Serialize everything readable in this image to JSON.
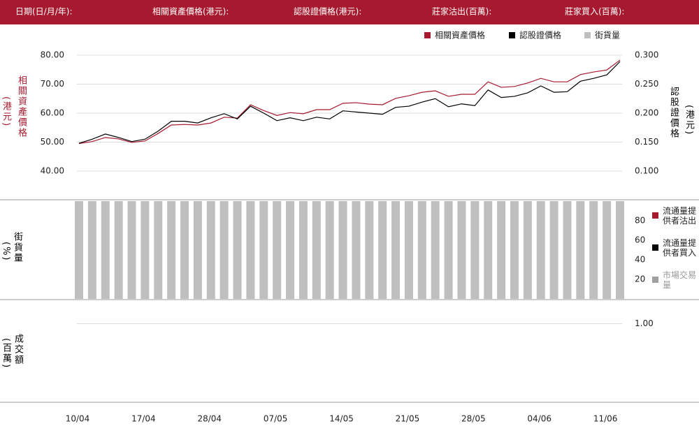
{
  "header": [
    "日期(日/月/年):",
    "相關資產價格(港元):",
    "認股證價格(港元):",
    "莊家沽出(百萬):",
    "莊家買入(百萬):"
  ],
  "chart_data": [
    {
      "type": "line",
      "y_label": "相關資產價格",
      "y_unit": "(港元)",
      "y2_label": "認股證價格",
      "y2_unit": "(港元)",
      "ylim": [
        40,
        80
      ],
      "yticks": [
        {
          "value": 40,
          "label": "40.00"
        },
        {
          "value": 50,
          "label": "50.00"
        },
        {
          "value": 60,
          "label": "60.00"
        },
        {
          "value": 70,
          "label": "70.00"
        },
        {
          "value": 80,
          "label": "80.00"
        }
      ],
      "y2lim": [
        0.1,
        0.3
      ],
      "y2ticks": [
        {
          "value": 0.1,
          "label": "0.100"
        },
        {
          "value": 0.15,
          "label": "0.150"
        },
        {
          "value": 0.2,
          "label": "0.200"
        },
        {
          "value": 0.25,
          "label": "0.250"
        },
        {
          "value": 0.3,
          "label": "0.300"
        }
      ],
      "grid": true,
      "series": [
        {
          "name": "相關資產價格",
          "color": "#a6192e",
          "values": [
            49.5,
            50.2,
            51.6,
            51.1,
            49.9,
            50.4,
            53.0,
            55.9,
            56.1,
            55.9,
            56.6,
            58.6,
            58.3,
            62.9,
            60.9,
            59.2,
            60.2,
            59.8,
            61.2,
            61.2,
            63.4,
            63.6,
            63.1,
            62.9,
            65.1,
            66.0,
            67.2,
            67.7,
            65.8,
            66.5,
            66.5,
            70.8,
            68.9,
            69.2,
            70.4,
            72.0,
            70.8,
            70.8,
            73.3,
            74.2,
            74.9,
            78.3
          ]
        },
        {
          "name": "認股證價格",
          "color": "#000000",
          "axis": "y2",
          "values": [
            0.148,
            0.155,
            0.164,
            0.158,
            0.151,
            0.155,
            0.169,
            0.186,
            0.186,
            0.183,
            0.192,
            0.199,
            0.19,
            0.212,
            0.2,
            0.187,
            0.192,
            0.187,
            0.193,
            0.19,
            0.204,
            0.202,
            0.2,
            0.198,
            0.21,
            0.212,
            0.219,
            0.225,
            0.211,
            0.216,
            0.213,
            0.24,
            0.227,
            0.229,
            0.235,
            0.247,
            0.236,
            0.237,
            0.255,
            0.26,
            0.266,
            0.289
          ]
        }
      ]
    },
    {
      "type": "bar",
      "y_label": "街貨量",
      "y_unit": "(%)",
      "ylim": [
        0,
        100
      ],
      "yticks": [
        20,
        40,
        60,
        80
      ],
      "series": [
        {
          "name": "街貨量",
          "color": "#bfbfbf",
          "values": [
            100,
            100,
            100,
            100,
            100,
            100,
            100,
            100,
            100,
            100,
            100,
            100,
            100,
            100,
            100,
            100,
            100,
            100,
            100,
            100,
            100,
            100,
            100,
            100,
            100,
            100,
            100,
            100,
            100,
            100,
            100,
            100,
            100,
            100,
            100,
            100,
            100,
            100,
            100,
            100,
            100,
            100
          ]
        }
      ]
    },
    {
      "type": "bar",
      "y_label": "成交額",
      "y_unit": "(百萬)",
      "ylim": [
        0,
        1.3
      ],
      "yticks": [
        {
          "value": 1,
          "label": "1.00"
        }
      ],
      "grid": true,
      "categories": [
        "10/04",
        null,
        null,
        null,
        null,
        "17/04",
        null,
        null,
        null,
        null,
        "28/04",
        null,
        null,
        null,
        null,
        "07/05",
        null,
        null,
        null,
        null,
        "14/05",
        null,
        null,
        null,
        null,
        "21/05",
        null,
        null,
        null,
        null,
        "28/05",
        null,
        null,
        null,
        null,
        "04/06",
        null,
        null,
        null,
        null,
        "11/06",
        null
      ],
      "series": [
        {
          "name": "流通量提供者沽出",
          "color": "#a6192e",
          "values": [
            0,
            0,
            0,
            0,
            0,
            0,
            0,
            0,
            0,
            0,
            0,
            0,
            0,
            0,
            0,
            0,
            0,
            0,
            0,
            0,
            0,
            0,
            0,
            0,
            0,
            0,
            0,
            0,
            0,
            0,
            0,
            0,
            0,
            0,
            0,
            0,
            0,
            0,
            0,
            0,
            0,
            0
          ]
        },
        {
          "name": "流通量提供者買入",
          "color": "#000000",
          "values": [
            0,
            0,
            0,
            0,
            0,
            0,
            0,
            0,
            0,
            0,
            0,
            0,
            0,
            0,
            0,
            0,
            0,
            0,
            0,
            0,
            0,
            0,
            0,
            0,
            0,
            0,
            0,
            0,
            0,
            0,
            0,
            0,
            0,
            0,
            0,
            0,
            0,
            0,
            0,
            0,
            0,
            0
          ]
        },
        {
          "name": "市場交易量",
          "color": "#a0a0a0",
          "values": [
            0,
            0,
            0,
            0,
            0,
            0,
            0,
            0,
            0,
            0,
            0,
            0,
            0,
            0,
            0,
            0,
            0,
            0,
            0,
            0,
            0,
            0,
            0,
            0,
            0,
            0,
            0,
            0,
            0,
            0,
            0,
            0,
            0,
            0,
            0,
            0,
            0,
            0,
            0,
            0,
            0,
            0
          ]
        }
      ]
    }
  ]
}
